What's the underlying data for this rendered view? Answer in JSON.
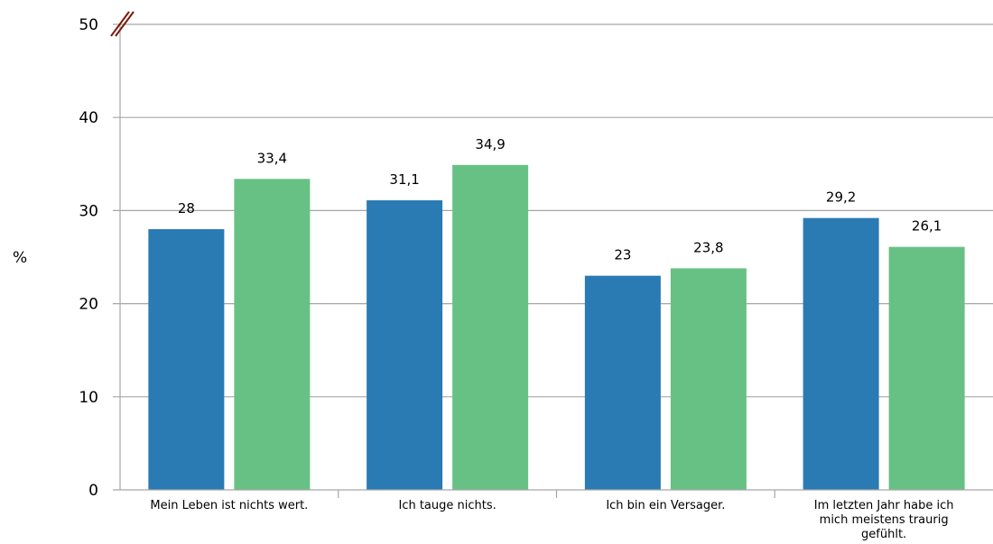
{
  "chart_data": {
    "type": "bar",
    "ylabel": "%",
    "ylim": [
      0,
      50
    ],
    "yticks": [
      "0",
      "10",
      "20",
      "30",
      "40",
      "50"
    ],
    "grid": true,
    "axis_break": true,
    "categories": [
      [
        "Mein Leben ist nichts wert."
      ],
      [
        "Ich tauge nichts."
      ],
      [
        "Ich bin ein Versager."
      ],
      [
        "Im letzten Jahr habe ich",
        "mich meistens traurig",
        "gefühlt."
      ]
    ],
    "series": [
      {
        "color": "#2a7ab3",
        "values": [
          28,
          31.1,
          23,
          29.2
        ],
        "labels": [
          "28",
          "31,1",
          "23",
          "29,2"
        ]
      },
      {
        "color": "#68c184",
        "values": [
          33.4,
          34.9,
          23.8,
          26.1
        ],
        "labels": [
          "33,4",
          "34,9",
          "23,8",
          "26,1"
        ]
      }
    ],
    "colors": {
      "grid": "#a6a6a6",
      "axis": "#a6a6a6",
      "break_mark": "#7a1a0a"
    }
  }
}
